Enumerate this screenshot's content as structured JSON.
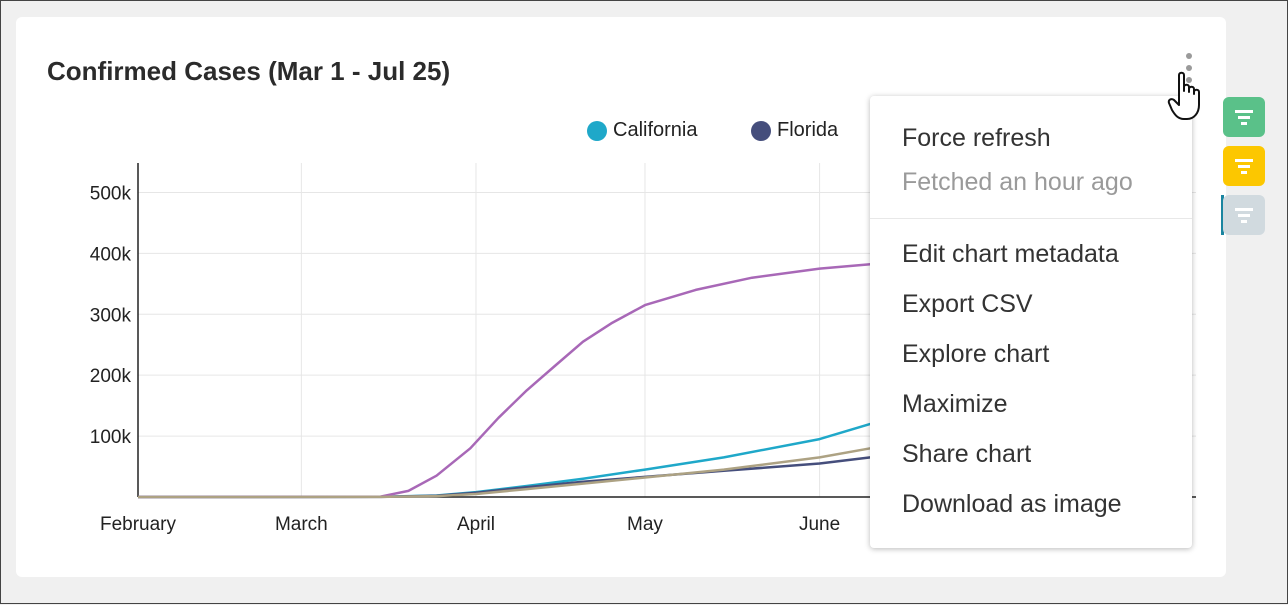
{
  "header": {
    "title": "Confirmed Cases (Mar 1 - Jul 25)"
  },
  "legend": [
    {
      "name": "California",
      "color": "#1fa8c9"
    },
    {
      "name": "Florida",
      "color": "#454e7c"
    }
  ],
  "menu": {
    "items": [
      {
        "label": "Force refresh",
        "muted": false
      },
      {
        "label": "Fetched an hour ago",
        "muted": true
      },
      {
        "label": "Edit chart metadata",
        "muted": false
      },
      {
        "label": "Export CSV",
        "muted": false
      },
      {
        "label": "Explore chart",
        "muted": false
      },
      {
        "label": "Maximize",
        "muted": false
      },
      {
        "label": "Share chart",
        "muted": false
      },
      {
        "label": "Download as image",
        "muted": false
      }
    ]
  },
  "filters": [
    {
      "icon": "filter-icon",
      "color": "#5ac189"
    },
    {
      "icon": "filter-icon",
      "color": "#fcc700"
    },
    {
      "icon": "filter-icon",
      "color": "#d1dadf"
    }
  ],
  "chart_data": {
    "type": "line",
    "title": "",
    "xlabel": "",
    "ylabel": "",
    "x_ticks": [
      "February",
      "March",
      "April",
      "May",
      "June"
    ],
    "y_ticks": [
      "100k",
      "200k",
      "300k",
      "400k",
      "500k"
    ],
    "ylim": [
      0,
      540000
    ],
    "grid": true,
    "legend_placement": "top-right",
    "series": [
      {
        "name": "California",
        "color": "#1fa8c9",
        "points": [
          [
            "2020-02-01",
            0
          ],
          [
            "2020-03-15",
            300
          ],
          [
            "2020-03-25",
            2500
          ],
          [
            "2020-04-01",
            8000
          ],
          [
            "2020-04-10",
            18000
          ],
          [
            "2020-04-20",
            30000
          ],
          [
            "2020-05-01",
            45000
          ],
          [
            "2020-05-15",
            65000
          ],
          [
            "2020-06-01",
            95000
          ],
          [
            "2020-06-10",
            120000
          ],
          [
            "2020-06-20",
            155000
          ]
        ]
      },
      {
        "name": "Florida",
        "color": "#454e7c",
        "points": [
          [
            "2020-02-01",
            0
          ],
          [
            "2020-03-15",
            200
          ],
          [
            "2020-03-25",
            2000
          ],
          [
            "2020-04-01",
            7000
          ],
          [
            "2020-04-10",
            16000
          ],
          [
            "2020-04-20",
            25000
          ],
          [
            "2020-05-01",
            33000
          ],
          [
            "2020-05-15",
            43000
          ],
          [
            "2020-06-01",
            55000
          ],
          [
            "2020-06-10",
            65000
          ],
          [
            "2020-06-20",
            78000
          ]
        ]
      },
      {
        "color": "#a868b7",
        "points": [
          [
            "2020-02-01",
            0
          ],
          [
            "2020-03-15",
            500
          ],
          [
            "2020-03-20",
            10000
          ],
          [
            "2020-03-25",
            35000
          ],
          [
            "2020-03-31",
            80000
          ],
          [
            "2020-04-05",
            130000
          ],
          [
            "2020-04-10",
            175000
          ],
          [
            "2020-04-15",
            215000
          ],
          [
            "2020-04-20",
            255000
          ],
          [
            "2020-04-25",
            285000
          ],
          [
            "2020-05-01",
            315000
          ],
          [
            "2020-05-10",
            340000
          ],
          [
            "2020-05-20",
            360000
          ],
          [
            "2020-06-01",
            375000
          ],
          [
            "2020-06-10",
            382000
          ],
          [
            "2020-06-20",
            390000
          ]
        ]
      },
      {
        "color": "#ada283",
        "points": [
          [
            "2020-02-01",
            0
          ],
          [
            "2020-03-15",
            150
          ],
          [
            "2020-03-25",
            1500
          ],
          [
            "2020-04-01",
            5000
          ],
          [
            "2020-04-10",
            13000
          ],
          [
            "2020-04-20",
            22000
          ],
          [
            "2020-05-01",
            32000
          ],
          [
            "2020-05-15",
            45000
          ],
          [
            "2020-06-01",
            65000
          ],
          [
            "2020-06-10",
            80000
          ],
          [
            "2020-06-20",
            92000
          ]
        ]
      }
    ]
  }
}
